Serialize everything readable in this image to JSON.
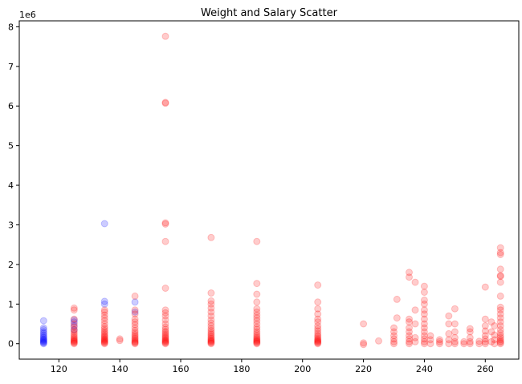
{
  "chart_data": {
    "type": "scatter",
    "title": "Weight and Salary Scatter",
    "xlabel": "",
    "ylabel": "",
    "y_offset_text": "1e6",
    "xlim": [
      107,
      271
    ],
    "ylim": [
      -0.39,
      8.15
    ],
    "x_ticks": [
      120,
      140,
      160,
      180,
      200,
      220,
      240,
      260
    ],
    "x_tick_labels": [
      "120",
      "140",
      "160",
      "180",
      "200",
      "220",
      "240",
      "260"
    ],
    "y_ticks": [
      0,
      1,
      2,
      3,
      4,
      5,
      6,
      7,
      8
    ],
    "y_tick_labels": [
      "0",
      "1",
      "2",
      "3",
      "4",
      "5",
      "6",
      "7",
      "8"
    ],
    "grid": false,
    "legend": "none",
    "marker_alpha": 0.2,
    "series": [
      {
        "color": "#0000ff",
        "points": [
          [
            115,
            0.0
          ],
          [
            115,
            0.02
          ],
          [
            115,
            0.04
          ],
          [
            115,
            0.06
          ],
          [
            115,
            0.08
          ],
          [
            115,
            0.1
          ],
          [
            115,
            0.12
          ],
          [
            115,
            0.15
          ],
          [
            115,
            0.18
          ],
          [
            115,
            0.22
          ],
          [
            115,
            0.26
          ],
          [
            115,
            0.3
          ],
          [
            115,
            0.35
          ],
          [
            115,
            0.4
          ],
          [
            115,
            0.58
          ],
          [
            125,
            0.35
          ],
          [
            125,
            0.45
          ],
          [
            125,
            0.55
          ],
          [
            125,
            0.6
          ],
          [
            135,
            3.03
          ],
          [
            135,
            1.07
          ],
          [
            135,
            1.0
          ],
          [
            145,
            1.05
          ],
          [
            145,
            0.8
          ]
        ]
      },
      {
        "color": "#ff0000",
        "points": [
          [
            125,
            0.0
          ],
          [
            125,
            0.02
          ],
          [
            125,
            0.04
          ],
          [
            125,
            0.06
          ],
          [
            125,
            0.08
          ],
          [
            125,
            0.1
          ],
          [
            125,
            0.13
          ],
          [
            125,
            0.16
          ],
          [
            125,
            0.2
          ],
          [
            125,
            0.25
          ],
          [
            125,
            0.3
          ],
          [
            125,
            0.35
          ],
          [
            125,
            0.42
          ],
          [
            125,
            0.5
          ],
          [
            125,
            0.62
          ],
          [
            125,
            0.85
          ],
          [
            125,
            0.9
          ],
          [
            135,
            0.0
          ],
          [
            135,
            0.02
          ],
          [
            135,
            0.04
          ],
          [
            135,
            0.06
          ],
          [
            135,
            0.08
          ],
          [
            135,
            0.1
          ],
          [
            135,
            0.12
          ],
          [
            135,
            0.15
          ],
          [
            135,
            0.18
          ],
          [
            135,
            0.21
          ],
          [
            135,
            0.25
          ],
          [
            135,
            0.29
          ],
          [
            135,
            0.33
          ],
          [
            135,
            0.38
          ],
          [
            135,
            0.43
          ],
          [
            135,
            0.5
          ],
          [
            135,
            0.58
          ],
          [
            135,
            0.65
          ],
          [
            135,
            0.72
          ],
          [
            135,
            0.8
          ],
          [
            135,
            0.85
          ],
          [
            140,
            0.12
          ],
          [
            140,
            0.08
          ],
          [
            145,
            0.0
          ],
          [
            145,
            0.02
          ],
          [
            145,
            0.04
          ],
          [
            145,
            0.06
          ],
          [
            145,
            0.09
          ],
          [
            145,
            0.12
          ],
          [
            145,
            0.15
          ],
          [
            145,
            0.19
          ],
          [
            145,
            0.23
          ],
          [
            145,
            0.28
          ],
          [
            145,
            0.33
          ],
          [
            145,
            0.4
          ],
          [
            145,
            0.48
          ],
          [
            145,
            0.55
          ],
          [
            145,
            0.62
          ],
          [
            145,
            0.75
          ],
          [
            145,
            0.85
          ],
          [
            145,
            1.2
          ],
          [
            155,
            0.0
          ],
          [
            155,
            0.02
          ],
          [
            155,
            0.04
          ],
          [
            155,
            0.06
          ],
          [
            155,
            0.08
          ],
          [
            155,
            0.1
          ],
          [
            155,
            0.13
          ],
          [
            155,
            0.16
          ],
          [
            155,
            0.19
          ],
          [
            155,
            0.23
          ],
          [
            155,
            0.27
          ],
          [
            155,
            0.31
          ],
          [
            155,
            0.36
          ],
          [
            155,
            0.42
          ],
          [
            155,
            0.5
          ],
          [
            155,
            0.6
          ],
          [
            155,
            0.7
          ],
          [
            155,
            0.78
          ],
          [
            155,
            0.85
          ],
          [
            155,
            1.4
          ],
          [
            155,
            2.58
          ],
          [
            155,
            3.02
          ],
          [
            155,
            3.05
          ],
          [
            155,
            6.07
          ],
          [
            155,
            6.09
          ],
          [
            155,
            7.76
          ],
          [
            170,
            0.0
          ],
          [
            170,
            0.02
          ],
          [
            170,
            0.04
          ],
          [
            170,
            0.06
          ],
          [
            170,
            0.08
          ],
          [
            170,
            0.1
          ],
          [
            170,
            0.13
          ],
          [
            170,
            0.16
          ],
          [
            170,
            0.2
          ],
          [
            170,
            0.24
          ],
          [
            170,
            0.28
          ],
          [
            170,
            0.33
          ],
          [
            170,
            0.38
          ],
          [
            170,
            0.45
          ],
          [
            170,
            0.52
          ],
          [
            170,
            0.6
          ],
          [
            170,
            0.7
          ],
          [
            170,
            0.8
          ],
          [
            170,
            0.9
          ],
          [
            170,
            1.0
          ],
          [
            170,
            1.08
          ],
          [
            170,
            1.28
          ],
          [
            170,
            2.68
          ],
          [
            185,
            0.0
          ],
          [
            185,
            0.02
          ],
          [
            185,
            0.04
          ],
          [
            185,
            0.06
          ],
          [
            185,
            0.08
          ],
          [
            185,
            0.1
          ],
          [
            185,
            0.13
          ],
          [
            185,
            0.16
          ],
          [
            185,
            0.2
          ],
          [
            185,
            0.25
          ],
          [
            185,
            0.3
          ],
          [
            185,
            0.36
          ],
          [
            185,
            0.42
          ],
          [
            185,
            0.5
          ],
          [
            185,
            0.58
          ],
          [
            185,
            0.65
          ],
          [
            185,
            0.72
          ],
          [
            185,
            0.8
          ],
          [
            185,
            0.88
          ],
          [
            185,
            1.05
          ],
          [
            185,
            1.25
          ],
          [
            185,
            1.52
          ],
          [
            185,
            2.58
          ],
          [
            205,
            0.0
          ],
          [
            205,
            0.02
          ],
          [
            205,
            0.04
          ],
          [
            205,
            0.06
          ],
          [
            205,
            0.08
          ],
          [
            205,
            0.1
          ],
          [
            205,
            0.13
          ],
          [
            205,
            0.17
          ],
          [
            205,
            0.21
          ],
          [
            205,
            0.26
          ],
          [
            205,
            0.32
          ],
          [
            205,
            0.38
          ],
          [
            205,
            0.45
          ],
          [
            205,
            0.55
          ],
          [
            205,
            0.62
          ],
          [
            205,
            0.75
          ],
          [
            205,
            0.88
          ],
          [
            205,
            1.05
          ],
          [
            205,
            1.48
          ],
          [
            220,
            0.5
          ],
          [
            220,
            0.02
          ],
          [
            220,
            -0.02
          ],
          [
            225,
            0.07
          ],
          [
            230,
            0.0
          ],
          [
            230,
            0.05
          ],
          [
            230,
            0.12
          ],
          [
            230,
            0.2
          ],
          [
            230,
            0.3
          ],
          [
            230,
            0.4
          ],
          [
            231,
            0.65
          ],
          [
            231,
            1.12
          ],
          [
            235,
            0.0
          ],
          [
            235,
            0.05
          ],
          [
            235,
            0.12
          ],
          [
            235,
            0.2
          ],
          [
            235,
            0.3
          ],
          [
            235,
            0.4
          ],
          [
            235,
            0.55
          ],
          [
            235,
            0.62
          ],
          [
            235,
            1.68
          ],
          [
            235,
            1.8
          ],
          [
            237,
            0.05
          ],
          [
            237,
            0.15
          ],
          [
            237,
            0.5
          ],
          [
            237,
            0.85
          ],
          [
            237,
            1.55
          ],
          [
            240,
            0.0
          ],
          [
            240,
            0.05
          ],
          [
            240,
            0.12
          ],
          [
            240,
            0.2
          ],
          [
            240,
            0.3
          ],
          [
            240,
            0.4
          ],
          [
            240,
            0.5
          ],
          [
            240,
            0.62
          ],
          [
            240,
            0.75
          ],
          [
            240,
            0.85
          ],
          [
            240,
            1.0
          ],
          [
            240,
            1.1
          ],
          [
            240,
            1.3
          ],
          [
            240,
            1.45
          ],
          [
            242,
            0.0
          ],
          [
            242,
            0.1
          ],
          [
            242,
            0.2
          ],
          [
            245,
            0.0
          ],
          [
            245,
            0.05
          ],
          [
            245,
            0.1
          ],
          [
            248,
            0.0
          ],
          [
            248,
            0.1
          ],
          [
            248,
            0.25
          ],
          [
            248,
            0.5
          ],
          [
            248,
            0.7
          ],
          [
            250,
            0.0
          ],
          [
            250,
            0.05
          ],
          [
            250,
            0.15
          ],
          [
            250,
            0.3
          ],
          [
            250,
            0.5
          ],
          [
            250,
            0.88
          ],
          [
            253,
            0.0
          ],
          [
            253,
            0.05
          ],
          [
            255,
            0.0
          ],
          [
            255,
            0.05
          ],
          [
            255,
            0.15
          ],
          [
            255,
            0.3
          ],
          [
            255,
            0.38
          ],
          [
            258,
            0.0
          ],
          [
            258,
            0.06
          ],
          [
            260,
            0.0
          ],
          [
            260,
            0.05
          ],
          [
            260,
            0.12
          ],
          [
            260,
            0.2
          ],
          [
            260,
            0.32
          ],
          [
            260,
            0.45
          ],
          [
            260,
            0.62
          ],
          [
            260,
            1.43
          ],
          [
            262,
            0.05
          ],
          [
            262,
            0.3
          ],
          [
            262,
            0.55
          ],
          [
            263,
            0.0
          ],
          [
            263,
            0.1
          ],
          [
            263,
            0.22
          ],
          [
            263,
            0.45
          ],
          [
            265,
            0.0
          ],
          [
            265,
            0.03
          ],
          [
            265,
            0.06
          ],
          [
            265,
            0.1
          ],
          [
            265,
            0.15
          ],
          [
            265,
            0.2
          ],
          [
            265,
            0.27
          ],
          [
            265,
            0.35
          ],
          [
            265,
            0.45
          ],
          [
            265,
            0.55
          ],
          [
            265,
            0.65
          ],
          [
            265,
            0.75
          ],
          [
            265,
            0.85
          ],
          [
            265,
            0.92
          ],
          [
            265,
            1.2
          ],
          [
            265,
            1.55
          ],
          [
            265,
            1.7
          ],
          [
            265,
            1.72
          ],
          [
            265,
            1.88
          ],
          [
            265,
            2.25
          ],
          [
            265,
            2.3
          ],
          [
            265,
            2.42
          ]
        ]
      }
    ]
  }
}
